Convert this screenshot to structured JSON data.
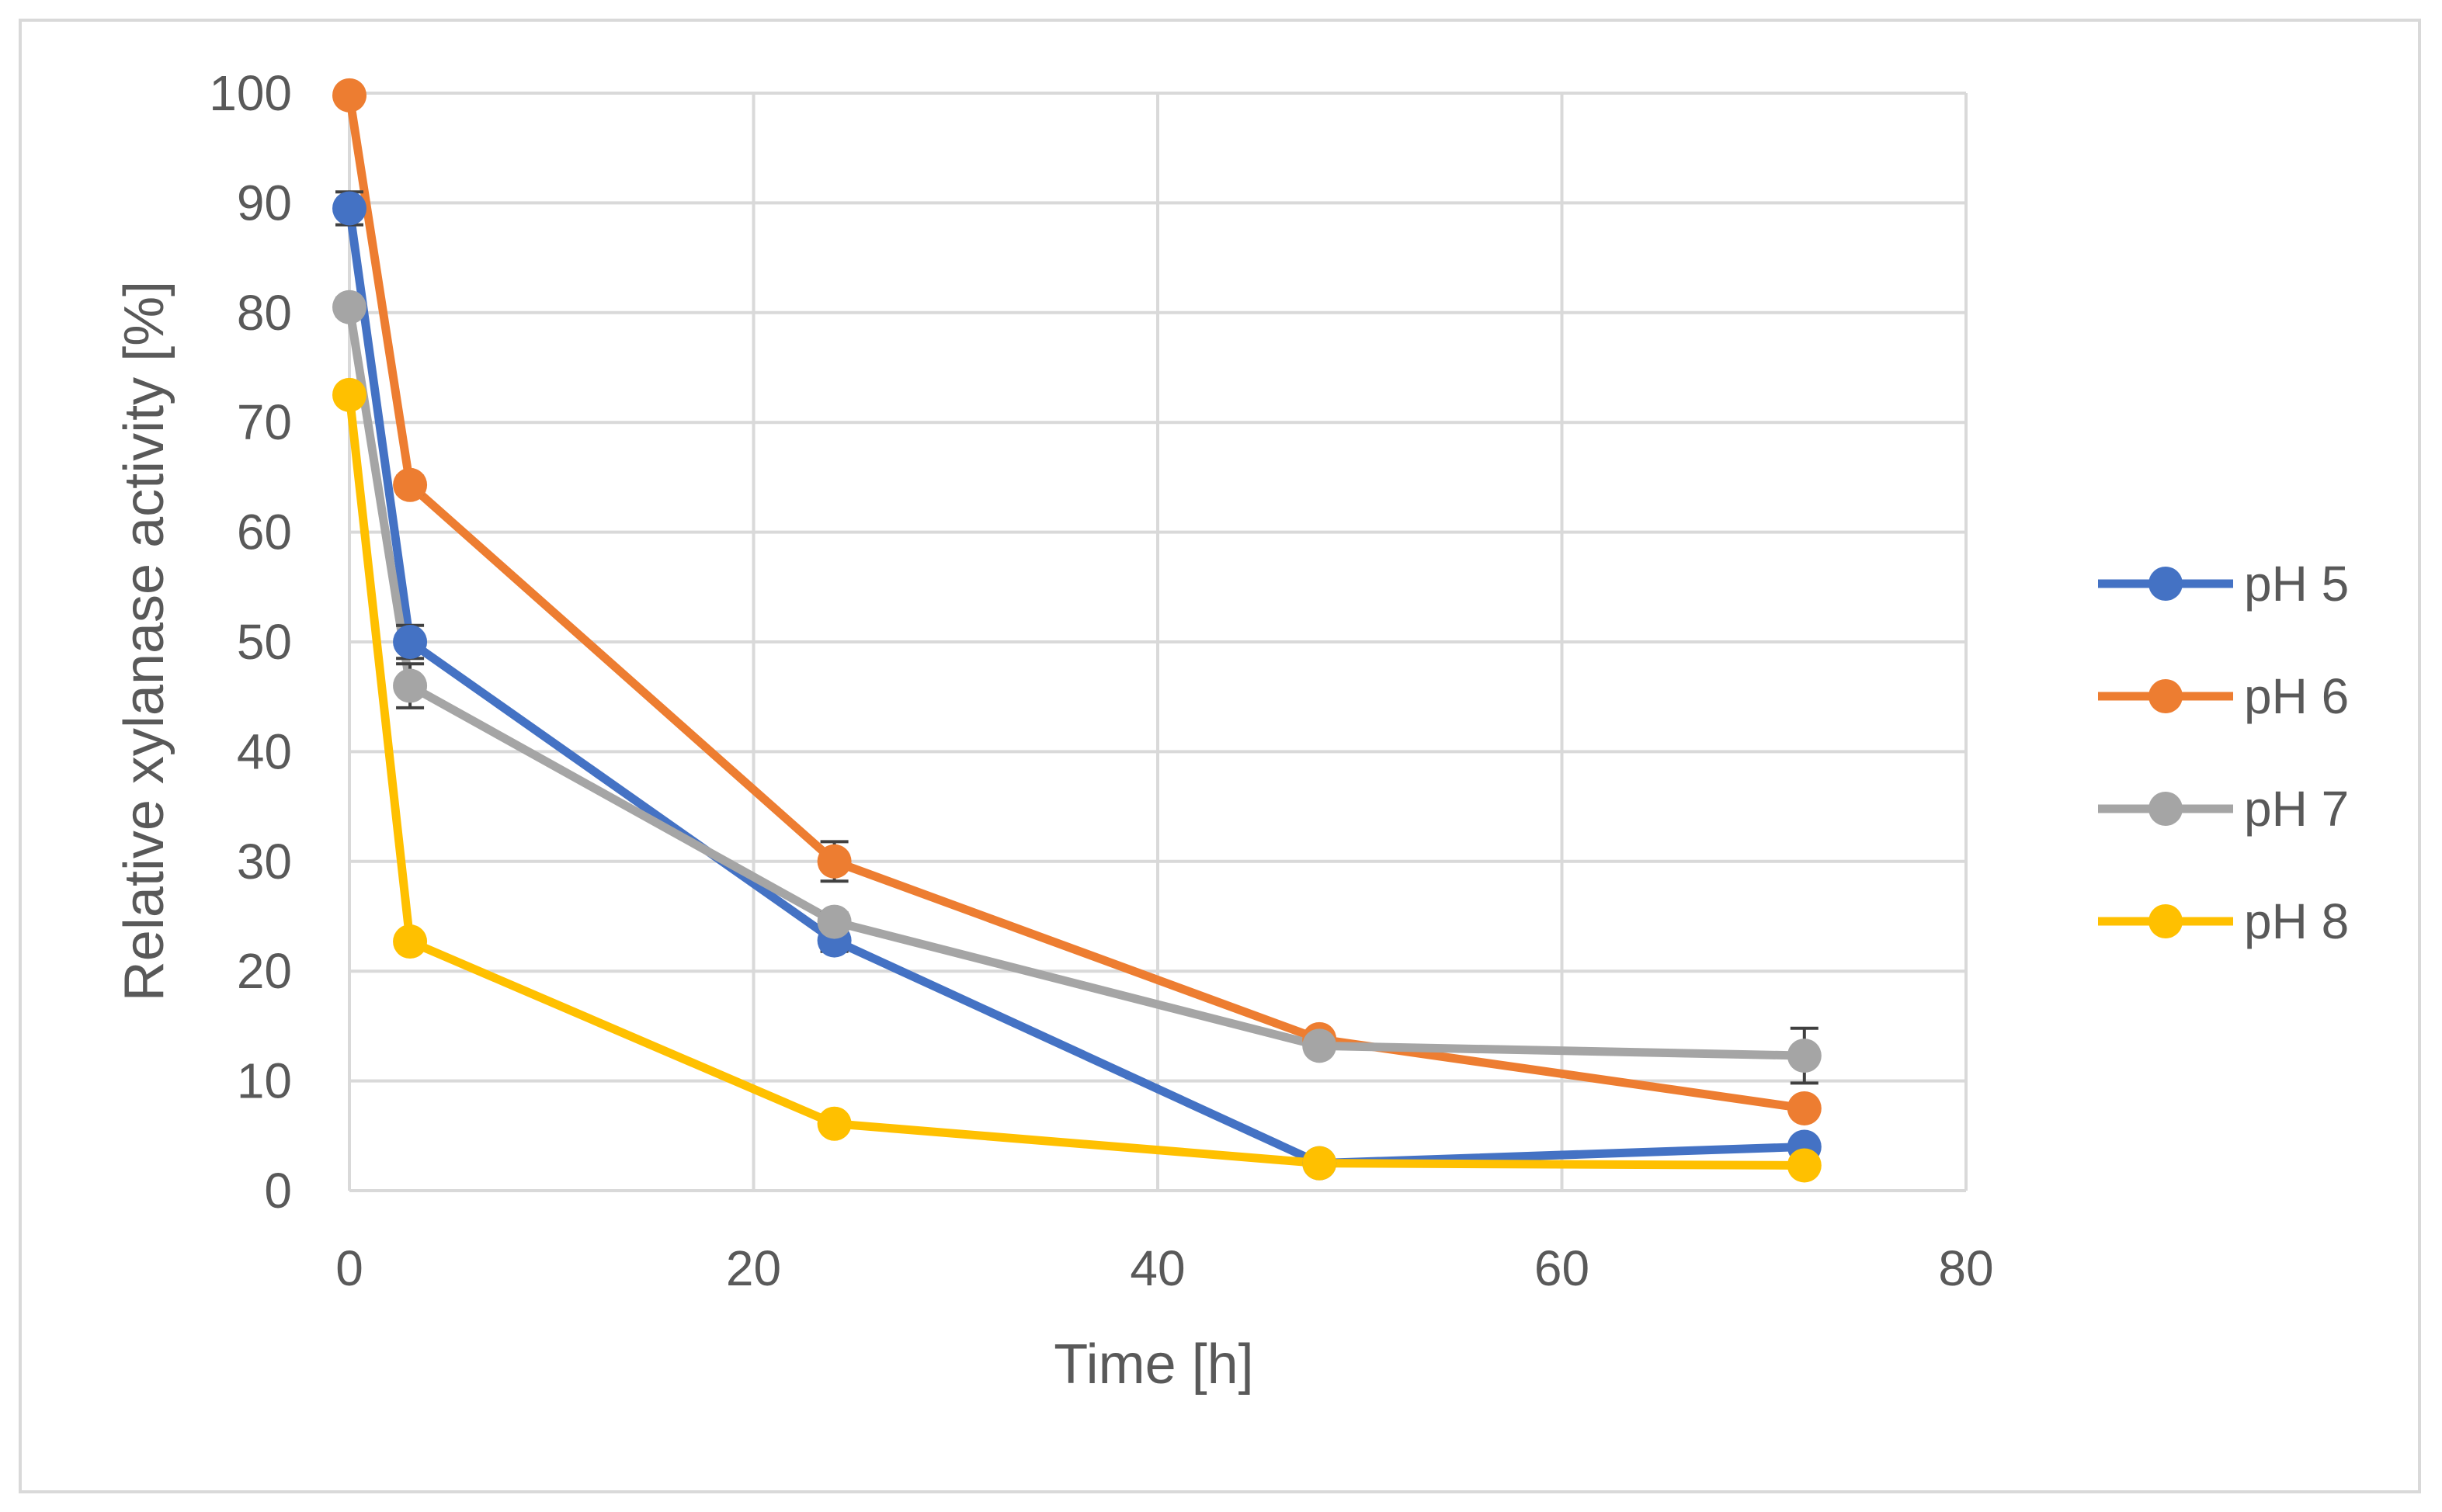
{
  "chart_data": {
    "type": "line",
    "title": "",
    "xlabel": "Time [h]",
    "ylabel": "Relative xylanase activity [%]",
    "xlim": [
      0,
      80
    ],
    "ylim": [
      0,
      100
    ],
    "xticks": [
      0,
      20,
      40,
      60,
      80
    ],
    "yticks": [
      0,
      10,
      20,
      30,
      40,
      50,
      60,
      70,
      80,
      90,
      100
    ],
    "grid": true,
    "legend_position": "right",
    "x": [
      0,
      3,
      24,
      48,
      72
    ],
    "series": [
      {
        "name": "pH 5",
        "color": "#4472c4",
        "values": [
          89.5,
          50,
          22.8,
          2.5,
          4
        ],
        "errors": [
          1.5,
          1.5,
          1.0,
          0.3,
          0.5
        ]
      },
      {
        "name": "pH 6",
        "color": "#ed7d31",
        "values": [
          99.8,
          64.3,
          30,
          13.8,
          7.5
        ],
        "errors": [
          0,
          0.8,
          1.8,
          0.4,
          0.5
        ]
      },
      {
        "name": "pH 7",
        "color": "#a5a5a5",
        "values": [
          80.5,
          46,
          24.5,
          13.2,
          12.3
        ],
        "errors": [
          0.8,
          2.0,
          0.8,
          0.4,
          2.5
        ]
      },
      {
        "name": "pH 8",
        "color": "#ffc000",
        "values": [
          72.5,
          22.7,
          6.1,
          2.5,
          2.3
        ],
        "errors": [
          0.5,
          0.4,
          0.3,
          0.2,
          0.3
        ]
      }
    ]
  }
}
